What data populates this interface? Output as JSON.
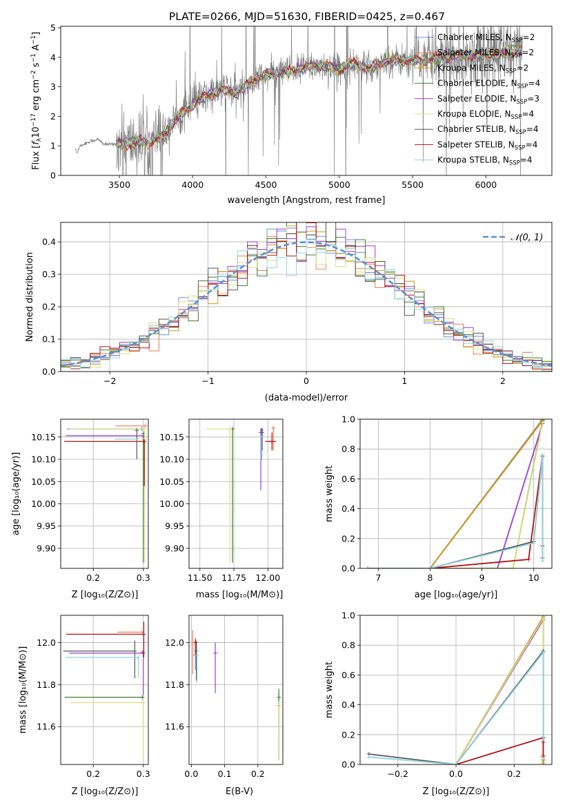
{
  "figure_title": "PLATE=0266, MJD=51630, FIBERID=0425, z=0.467",
  "legend_models": [
    {
      "name": "Chabrier MILES, N",
      "sub": "SSP",
      "tail": "=2",
      "color": "#6b8dd6"
    },
    {
      "name": "Salpeter MILES, N",
      "sub": "SSP",
      "tail": "=2",
      "color": "#f07c54"
    },
    {
      "name": "Kroupa MILES, N",
      "sub": "SSP",
      "tail": "=2",
      "color": "#c79a16"
    },
    {
      "name": "Chabrier ELODIE, N",
      "sub": "SSP",
      "tail": "=4",
      "color": "#3a7d2c"
    },
    {
      "name": "Salpeter ELODIE, N",
      "sub": "SSP",
      "tail": "=3",
      "color": "#9c3ccf"
    },
    {
      "name": "Kroupa ELODIE, N",
      "sub": "SSP",
      "tail": "=4",
      "color": "#d8e07a"
    },
    {
      "name": "Chabrier STELIB, N",
      "sub": "SSP",
      "tail": "=4",
      "color": "#555555"
    },
    {
      "name": "Salpeter STELIB, N",
      "sub": "SSP",
      "tail": "=4",
      "color": "#b31212"
    },
    {
      "name": "Kroupa STELIB, N",
      "sub": "SSP",
      "tail": "=4",
      "color": "#8fd3e0"
    }
  ],
  "chart_data": [
    {
      "id": "spectrum",
      "type": "line",
      "xlabel": "wavelength [Angstrom, rest frame]",
      "ylabel_parts": [
        "Flux [",
        "f",
        "λ",
        "10",
        "−17",
        " erg cm",
        "−2",
        " s",
        "−1",
        " A",
        "−1",
        "]"
      ],
      "xlim": [
        3100,
        6450
      ],
      "ylim": [
        0,
        5.05
      ],
      "xticks": [
        3500,
        4000,
        4500,
        5000,
        5500,
        6000
      ],
      "yticks": [
        0,
        1,
        2,
        3,
        4,
        5
      ],
      "grid": false,
      "legend_position": "top-right",
      "data_color": "#808080",
      "data_x_range": [
        3200,
        6250
      ],
      "continuum_points": [
        [
          3200,
          0.9
        ],
        [
          3210,
          0.75
        ],
        [
          3230,
          1.0
        ],
        [
          3300,
          1.15
        ],
        [
          3350,
          1.22
        ],
        [
          3400,
          1.05
        ],
        [
          3500,
          1.05
        ],
        [
          3600,
          1.1
        ],
        [
          3700,
          1.15
        ],
        [
          3800,
          1.3
        ],
        [
          3850,
          1.7
        ],
        [
          3950,
          2.2
        ],
        [
          4000,
          2.4
        ],
        [
          4100,
          2.7
        ],
        [
          4200,
          2.9
        ],
        [
          4300,
          2.8
        ],
        [
          4400,
          3.2
        ],
        [
          4500,
          3.4
        ],
        [
          4600,
          3.5
        ],
        [
          4700,
          3.55
        ],
        [
          4800,
          3.7
        ],
        [
          4900,
          3.7
        ],
        [
          5000,
          3.6
        ],
        [
          5100,
          3.8
        ],
        [
          5200,
          3.6
        ],
        [
          5300,
          3.85
        ],
        [
          5400,
          3.9
        ],
        [
          5500,
          3.9
        ],
        [
          5600,
          3.9
        ],
        [
          5700,
          4.0
        ],
        [
          5800,
          4.05
        ],
        [
          5900,
          4.05
        ],
        [
          6000,
          4.1
        ],
        [
          6100,
          4.15
        ],
        [
          6250,
          4.25
        ]
      ]
    },
    {
      "id": "residuals",
      "type": "histogram",
      "xlabel": "(data-model)/error",
      "ylabel": "Normed distribution",
      "xlim": [
        -2.5,
        2.5
      ],
      "ylim": [
        0,
        0.46
      ],
      "xticks": [
        -2,
        -1,
        0,
        1,
        2
      ],
      "yticks": [
        0.0,
        0.1,
        0.2,
        0.3,
        0.4
      ],
      "grid": true,
      "legend_position": "top-right",
      "legend_label": "𝒩(0, 1)",
      "gaussian_color": "#5b8fd0",
      "bins": 50
    },
    {
      "id": "age_vs_Z",
      "type": "errorbar",
      "xlabel": "Z [log₁₀(Z/Z⊙)]",
      "ylabel": "age  [log₁₀(age/yr)]",
      "xlim": [
        0.135,
        0.31
      ],
      "ylim": [
        9.855,
        10.19
      ],
      "xticks": [
        0.2,
        0.3
      ],
      "yticks": [
        9.9,
        9.95,
        10.0,
        10.05,
        10.1,
        10.15
      ],
      "grid": true,
      "points": [
        {
          "m": 0,
          "x": 0.297,
          "y": 10.168,
          "xe": [
            0.15,
            0.0
          ],
          "ye": [
            0.005,
            0.005
          ]
        },
        {
          "m": 1,
          "x": 0.304,
          "y": 10.175,
          "xe": [
            0.06,
            0.0
          ],
          "ye": [
            0.0,
            0.0
          ]
        },
        {
          "m": 2,
          "x": 0.3,
          "y": 10.15,
          "xe": [
            0.0,
            0.0
          ],
          "ye": [
            0.0,
            0.0
          ]
        },
        {
          "m": 3,
          "x": 0.3,
          "y": 10.158,
          "xe": [
            0.0,
            0.0
          ],
          "ye": [
            0.29,
            0.0
          ]
        },
        {
          "m": 4,
          "x": 0.3,
          "y": 10.153,
          "xe": [
            0.155,
            0.0
          ],
          "ye": [
            0.0,
            0.0
          ]
        },
        {
          "m": 5,
          "x": 0.303,
          "y": 10.168,
          "xe": [
            0.15,
            0.0
          ],
          "ye": [
            0.3,
            0.0
          ]
        },
        {
          "m": 6,
          "x": 0.287,
          "y": 10.165,
          "xe": [
            0.0,
            0.0
          ],
          "ye": [
            0.065,
            0.0
          ]
        },
        {
          "m": 7,
          "x": 0.302,
          "y": 10.14,
          "xe": [
            0.16,
            0.0
          ],
          "ye": [
            0.1,
            0.005
          ]
        },
        {
          "m": 8,
          "x": 0.288,
          "y": 10.145,
          "xe": [
            0.045,
            0.0
          ],
          "ye": [
            0.0,
            0.0
          ]
        }
      ]
    },
    {
      "id": "age_vs_mass",
      "type": "errorbar",
      "xlabel": "mass [log₁₀(M/M⊙)]",
      "ylabel": "",
      "xlim": [
        11.42,
        12.11
      ],
      "ylim": [
        9.855,
        10.19
      ],
      "xticks": [
        11.5,
        11.75,
        12.0
      ],
      "xticklabels": [
        "11.50",
        "11.75",
        "12.00"
      ],
      "yticks": [
        9.9,
        9.95,
        10.0,
        10.05,
        10.1,
        10.15
      ],
      "grid": true,
      "points": [
        {
          "m": 0,
          "x": 11.955,
          "y": 10.165,
          "xe": [
            0.0,
            0.0
          ],
          "ye": [
            0.065,
            0.005
          ]
        },
        {
          "m": 1,
          "x": 12.04,
          "y": 10.17,
          "xe": [
            0.0,
            0.0
          ],
          "ye": [
            0.05,
            0.005
          ]
        },
        {
          "m": 2,
          "x": 11.74,
          "y": 10.168,
          "xe": [
            0.0,
            0.0
          ],
          "ye": [
            0.0,
            0.0
          ]
        },
        {
          "m": 3,
          "x": 11.74,
          "y": 10.168,
          "xe": [
            0.0,
            0.0
          ],
          "ye": [
            0.3,
            0.0
          ]
        },
        {
          "m": 4,
          "x": 11.948,
          "y": 10.16,
          "xe": [
            0.0,
            0.0
          ],
          "ye": [
            0.13,
            0.01
          ]
        },
        {
          "m": 5,
          "x": 11.72,
          "y": 10.168,
          "xe": [
            0.17,
            0.0
          ],
          "ye": [
            0.3,
            0.0
          ]
        },
        {
          "m": 6,
          "x": 11.958,
          "y": 10.16,
          "xe": [
            0.0,
            0.0
          ],
          "ye": [
            0.04,
            0.01
          ]
        },
        {
          "m": 7,
          "x": 12.03,
          "y": 10.14,
          "xe": [
            0.05,
            0.03
          ],
          "ye": [
            0.02,
            0.02
          ]
        },
        {
          "m": 8,
          "x": 11.95,
          "y": 10.15,
          "xe": [
            0.0,
            0.0
          ],
          "ye": [
            0.05,
            0.0
          ]
        }
      ]
    },
    {
      "id": "massweight_vs_age",
      "type": "line",
      "xlabel": "age  [log₁₀(age/yr)]",
      "ylabel": "mass weight",
      "xlim": [
        6.65,
        10.35
      ],
      "ylim": [
        0,
        1
      ],
      "xticks": [
        7,
        8,
        9,
        10
      ],
      "yticks": [
        0.0,
        0.2,
        0.4,
        0.6,
        0.8,
        1.0
      ],
      "grid": true,
      "series": [
        {
          "m": 0,
          "x": [
            6.8,
            8.0,
            10.17
          ],
          "y": [
            0.0,
            0.0,
            1.0
          ]
        },
        {
          "m": 1,
          "x": [
            6.8,
            8.0,
            10.17
          ],
          "y": [
            0.0,
            0.0,
            0.99
          ]
        },
        {
          "m": 2,
          "x": [
            6.8,
            8.0,
            10.17
          ],
          "y": [
            0.0,
            0.0,
            0.995
          ]
        },
        {
          "m": 3,
          "x": [
            6.8,
            8.0,
            9.6,
            10.17
          ],
          "y": [
            0.0,
            0.0,
            0.0,
            0.99
          ]
        },
        {
          "m": 4,
          "x": [
            6.8,
            8.0,
            9.3,
            10.17
          ],
          "y": [
            0.0,
            0.0,
            0.0,
            0.97
          ]
        },
        {
          "m": 5,
          "x": [
            6.8,
            8.0,
            9.6,
            10.17
          ],
          "y": [
            0.0,
            0.0,
            0.0,
            0.98
          ]
        },
        {
          "m": 6,
          "x": [
            6.8,
            8.0,
            10.0,
            10.17,
            10.17
          ],
          "y": [
            0.0,
            0.0,
            0.18,
            0.75,
            0.07
          ]
        },
        {
          "m": 7,
          "x": [
            6.8,
            8.0,
            9.9,
            10.17,
            10.17
          ],
          "y": [
            0.0,
            0.0,
            0.06,
            0.76,
            0.15
          ]
        },
        {
          "m": 8,
          "x": [
            6.8,
            8.0,
            10.0,
            10.17,
            10.17
          ],
          "y": [
            0.0,
            0.0,
            0.17,
            0.76,
            0.05
          ]
        }
      ]
    },
    {
      "id": "mass_vs_Z",
      "type": "errorbar",
      "xlabel": "Z [log₁₀(Z/Z⊙)]",
      "ylabel": "mass [log₁₀(M/M⊙)]",
      "xlim": [
        0.135,
        0.31
      ],
      "ylim": [
        11.42,
        12.13
      ],
      "xticks": [
        0.2,
        0.3
      ],
      "yticks": [
        11.6,
        11.8,
        12.0
      ],
      "grid": true,
      "points": [
        {
          "m": 0,
          "x": 0.298,
          "y": 11.955,
          "xe": [
            0.0,
            0.0
          ],
          "ye": [
            0.0,
            0.0
          ]
        },
        {
          "m": 1,
          "x": 0.298,
          "y": 12.05,
          "xe": [
            0.05,
            0.0
          ],
          "ye": [
            0.0,
            0.0
          ]
        },
        {
          "m": 2,
          "x": 0.298,
          "y": 11.955,
          "xe": [
            0.0,
            0.0
          ],
          "ye": [
            0.0,
            0.0
          ]
        },
        {
          "m": 3,
          "x": 0.298,
          "y": 11.74,
          "xe": [
            0.155,
            0.0
          ],
          "ye": [
            0.0,
            0.0
          ]
        },
        {
          "m": 4,
          "x": 0.3,
          "y": 11.95,
          "xe": [
            0.148,
            0.0
          ],
          "ye": [
            0.2,
            0.0
          ]
        },
        {
          "m": 5,
          "x": 0.3,
          "y": 11.715,
          "xe": [
            0.145,
            0.0
          ],
          "ye": [
            0.27,
            0.0
          ]
        },
        {
          "m": 6,
          "x": 0.283,
          "y": 11.96,
          "xe": [
            0.143,
            0.0
          ],
          "ye": [
            0.13,
            0.05
          ]
        },
        {
          "m": 7,
          "x": 0.301,
          "y": 12.04,
          "xe": [
            0.155,
            0.0
          ],
          "ye": [
            0.11,
            0.06
          ]
        },
        {
          "m": 8,
          "x": 0.29,
          "y": 11.93,
          "xe": [
            0.145,
            0.0
          ],
          "ye": [
            0.1,
            0.0
          ]
        }
      ]
    },
    {
      "id": "mass_vs_ebv",
      "type": "errorbar",
      "xlabel": "E(B-V)",
      "ylabel": "",
      "xlim": [
        -0.007,
        0.275
      ],
      "ylim": [
        11.42,
        12.13
      ],
      "xticks": [
        0.0,
        0.1,
        0.2
      ],
      "yticks": [
        11.6,
        11.8,
        12.0
      ],
      "grid": true,
      "points": [
        {
          "m": 0,
          "x": 0.012,
          "y": 11.94,
          "xe": [
            0.0,
            0.0
          ],
          "ye": [
            0.07,
            0.0
          ]
        },
        {
          "m": 1,
          "x": 0.004,
          "y": 12.0,
          "xe": [
            0.0,
            0.0
          ],
          "ye": [
            0.15,
            0.06
          ]
        },
        {
          "m": 2,
          "x": 0.263,
          "y": 11.7,
          "xe": [
            0.0,
            0.0
          ],
          "ye": [
            0.25,
            0.0
          ]
        },
        {
          "m": 3,
          "x": 0.263,
          "y": 11.74,
          "xe": [
            0.0,
            0.0
          ],
          "ye": [
            0.3,
            0.04
          ]
        },
        {
          "m": 4,
          "x": 0.072,
          "y": 11.95,
          "xe": [
            0.0,
            0.0
          ],
          "ye": [
            0.19,
            0.05
          ]
        },
        {
          "m": 5,
          "x": 0.263,
          "y": 11.71,
          "xe": [
            0.0,
            0.0
          ],
          "ye": [
            0.27,
            0.0
          ]
        },
        {
          "m": 6,
          "x": 0.015,
          "y": 11.96,
          "xe": [
            0.0,
            0.0
          ],
          "ye": [
            0.14,
            0.05
          ]
        },
        {
          "m": 7,
          "x": 0.012,
          "y": 12.0,
          "xe": [
            0.0,
            0.0
          ],
          "ye": [
            0.06,
            0.02
          ]
        },
        {
          "m": 8,
          "x": 0.017,
          "y": 11.94,
          "xe": [
            0.0,
            0.0
          ],
          "ye": [
            0.13,
            0.05
          ]
        }
      ]
    },
    {
      "id": "massweight_vs_Z",
      "type": "line",
      "xlabel": "Z [log₁₀(Z/Z⊙)]",
      "ylabel": "mass weight",
      "xlim": [
        -0.33,
        0.33
      ],
      "ylim": [
        0,
        1
      ],
      "xticks": [
        -0.2,
        0.0,
        0.2
      ],
      "yticks": [
        0.0,
        0.2,
        0.4,
        0.6,
        0.8,
        1.0
      ],
      "grid": true,
      "series": [
        {
          "m": 0,
          "x": [
            0.0,
            0.3,
            0.3
          ],
          "y": [
            0.0,
            0.99,
            0.0
          ]
        },
        {
          "m": 1,
          "x": [
            0.0,
            0.3,
            0.3
          ],
          "y": [
            0.0,
            0.99,
            0.01
          ]
        },
        {
          "m": 2,
          "x": [
            0.0,
            0.3,
            0.3
          ],
          "y": [
            0.0,
            0.99,
            0.0
          ]
        },
        {
          "m": 3,
          "x": [
            0.0,
            0.3,
            0.3
          ],
          "y": [
            0.0,
            0.98,
            0.03
          ]
        },
        {
          "m": 4,
          "x": [
            0.0,
            0.3,
            0.3
          ],
          "y": [
            0.0,
            0.97,
            0.05
          ]
        },
        {
          "m": 5,
          "x": [
            0.0,
            0.3,
            0.3
          ],
          "y": [
            0.0,
            0.98,
            0.04
          ]
        },
        {
          "m": 6,
          "x": [
            -0.3,
            0.0,
            0.3,
            0.3
          ],
          "y": [
            0.07,
            0.0,
            0.76,
            0.15
          ]
        },
        {
          "m": 7,
          "x": [
            0.0,
            0.3,
            0.3
          ],
          "y": [
            0.0,
            0.18,
            0.06
          ]
        },
        {
          "m": 8,
          "x": [
            -0.3,
            0.0,
            0.3,
            0.3
          ],
          "y": [
            0.05,
            0.0,
            0.75,
            0.17
          ]
        }
      ]
    }
  ]
}
